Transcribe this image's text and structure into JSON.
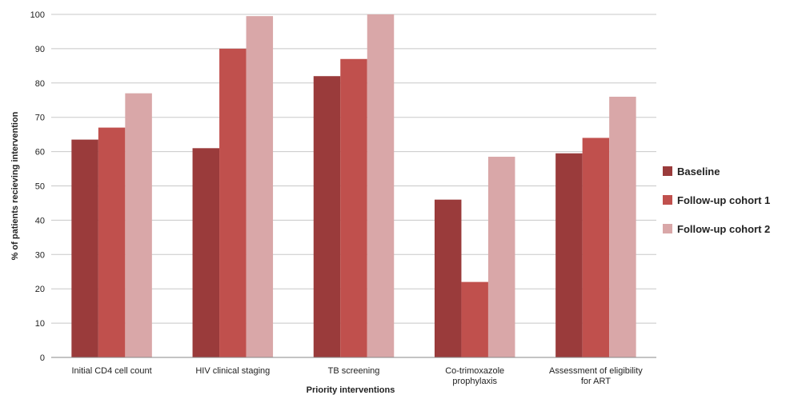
{
  "chart_data": {
    "type": "bar",
    "categories": [
      [
        "Initial CD4 cell count"
      ],
      [
        "HIV clinical staging"
      ],
      [
        "TB screening"
      ],
      [
        "Co-trimoxazole",
        "prophylaxis"
      ],
      [
        "Assessment of eligibility",
        "for ART"
      ]
    ],
    "series": [
      {
        "name": "Baseline",
        "color": "#9a3b3b",
        "values": [
          63.5,
          61,
          82,
          46,
          59.5
        ]
      },
      {
        "name": "Follow-up cohort 1",
        "color": "#c0504d",
        "values": [
          67,
          90,
          87,
          22,
          64
        ]
      },
      {
        "name": "Follow-up cohort 2",
        "color": "#d9a7a8",
        "values": [
          77,
          99.5,
          100,
          58.5,
          76
        ]
      }
    ],
    "xlabel": "Priority interventions",
    "ylabel": "% of patients recieving intervention",
    "ylim": [
      0,
      100
    ],
    "yticks": [
      0,
      10,
      20,
      30,
      40,
      50,
      60,
      70,
      80,
      90,
      100
    ],
    "grid": true,
    "legend": "right"
  }
}
